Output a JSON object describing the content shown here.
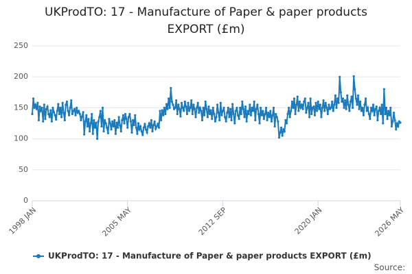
{
  "chart_data": {
    "type": "line",
    "title": "UKProdTO: 17 - Manufacture of Paper & paper products EXPORT (£m)",
    "source": "Source:",
    "ylim": [
      0,
      250
    ],
    "yticks": [
      0,
      50,
      100,
      150,
      200,
      250
    ],
    "grid": true,
    "categories": [
      "1998 JAN",
      null,
      null,
      null,
      null,
      null,
      null,
      null,
      null,
      null,
      null,
      null,
      null,
      null,
      null,
      null,
      null,
      null,
      null,
      null,
      null,
      null,
      null,
      null,
      null,
      null,
      null,
      null,
      null,
      null,
      null,
      null,
      null,
      null,
      null,
      null,
      null,
      null,
      null,
      null,
      null,
      null,
      null,
      null,
      null,
      null,
      null,
      null,
      null,
      null,
      null,
      null,
      null,
      null,
      null,
      null,
      null,
      null,
      null,
      null,
      null,
      null,
      null,
      null,
      null,
      null,
      null,
      null,
      null,
      null,
      null,
      null,
      null,
      null,
      null,
      null,
      null,
      null,
      null,
      null,
      null,
      null,
      null,
      null,
      null,
      null,
      null,
      null,
      "2005 MAY",
      null,
      null,
      null,
      null,
      null,
      null,
      null,
      null,
      null,
      null,
      null,
      null,
      null,
      null,
      null,
      null,
      null,
      null,
      null,
      null,
      null,
      null,
      null,
      null,
      null,
      null,
      null,
      null,
      null,
      null,
      null,
      null,
      null,
      null,
      null,
      null,
      null,
      null,
      null,
      null,
      null,
      null,
      null,
      null,
      null,
      null,
      null,
      null,
      null,
      null,
      null,
      null,
      null,
      null,
      null,
      null,
      null,
      null,
      null,
      null,
      null,
      null,
      null,
      null,
      null,
      null,
      null,
      null,
      null,
      null,
      null,
      null,
      null,
      null,
      null,
      null,
      null,
      null,
      null,
      null,
      null,
      null,
      null,
      null,
      null,
      null,
      null,
      "2012 SEP",
      null,
      null,
      null,
      null,
      null,
      null,
      null,
      null,
      null,
      null,
      null,
      null,
      null,
      null,
      null,
      null,
      null,
      null,
      null,
      null,
      null,
      null,
      null,
      null,
      null,
      null,
      null,
      null,
      null,
      null,
      null,
      null,
      null,
      null,
      null,
      null,
      null,
      null,
      null,
      null,
      null,
      null,
      null,
      null,
      null,
      null,
      null,
      null,
      null,
      null,
      null,
      null,
      null,
      null,
      null,
      null,
      null,
      null,
      null,
      null,
      null,
      null,
      null,
      null,
      null,
      null,
      null,
      null,
      null,
      null,
      null,
      null,
      null,
      null,
      null,
      null,
      null,
      null,
      null,
      null,
      null,
      null,
      null,
      null,
      null,
      null,
      null,
      "2020 JAN",
      null,
      null,
      null,
      null,
      null,
      null,
      null,
      null,
      null,
      null,
      null,
      null,
      null,
      null,
      null,
      null,
      null,
      null,
      null,
      null,
      null,
      null,
      null,
      null,
      null,
      null,
      null,
      null,
      null,
      null,
      null,
      null,
      null,
      null,
      null,
      null,
      null,
      null,
      null,
      null,
      null,
      null,
      null,
      null,
      null,
      null,
      null,
      null,
      null,
      null,
      null,
      null,
      null,
      null,
      null,
      null,
      null,
      null,
      null,
      null,
      null,
      null,
      null,
      null,
      null,
      null,
      null,
      null,
      null,
      null,
      null,
      null,
      null,
      null,
      null,
      "2026 MAY"
    ],
    "series": [
      {
        "name": "UKProdTO: 17 - Manufacture of Paper & paper products EXPORT (£m)",
        "color": "#1a7abc",
        "values": [
          140,
          165,
          150,
          155,
          148,
          158,
          130,
          152,
          145,
          150,
          128,
          155,
          132,
          148,
          152,
          140,
          135,
          146,
          128,
          150,
          143,
          138,
          131,
          145,
          156,
          140,
          150,
          135,
          158,
          142,
          130,
          155,
          160,
          145,
          138,
          150,
          162,
          140,
          145,
          148,
          138,
          150,
          142,
          145,
          140,
          130,
          136,
          143,
          107,
          128,
          138,
          120,
          132,
          112,
          125,
          140,
          108,
          130,
          118,
          126,
          100,
          128,
          135,
          145,
          120,
          150,
          112,
          130,
          125,
          118,
          109,
          132,
          125,
          115,
          128,
          120,
          130,
          108,
          126,
          118,
          135,
          122,
          112,
          130,
          138,
          125,
          140,
          132,
          118,
          135,
          140,
          128,
          110,
          130,
          122,
          138,
          118,
          108,
          125,
          115,
          120,
          112,
          106,
          118,
          124,
          115,
          110,
          120,
          125,
          118,
          130,
          112,
          122,
          128,
          116,
          120,
          124,
          118,
          145,
          130,
          146,
          138,
          150,
          140,
          156,
          148,
          165,
          150,
          182,
          160,
          155,
          148,
          150,
          162,
          140,
          155,
          148,
          136,
          158,
          150,
          145,
          160,
          152,
          140,
          158,
          145,
          150,
          162,
          140,
          155,
          148,
          135,
          150,
          158,
          142,
          150,
          145,
          130,
          150,
          138,
          160,
          148,
          135,
          152,
          140,
          146,
          132,
          150,
          140,
          128,
          135,
          155,
          142,
          130,
          158,
          138,
          145,
          150,
          135,
          128,
          142,
          150,
          135,
          148,
          130,
          156,
          140,
          125,
          145,
          150,
          138,
          132,
          150,
          140,
          160,
          148,
          135,
          152,
          128,
          145,
          140,
          155,
          138,
          150,
          145,
          160,
          130,
          148,
          155,
          140,
          125,
          150,
          138,
          145,
          132,
          140,
          150,
          130,
          142,
          135,
          145,
          128,
          138,
          150,
          120,
          140,
          135,
          128,
          102,
          110,
          118,
          105,
          115,
          112,
          130,
          125,
          140,
          150,
          135,
          145,
          160,
          150,
          165,
          140,
          155,
          168,
          145,
          160,
          150,
          155,
          148,
          160,
          165,
          142,
          150,
          158,
          135,
          165,
          140,
          150,
          152,
          138,
          158,
          145,
          160,
          148,
          155,
          135,
          150,
          162,
          145,
          158,
          150,
          140,
          155,
          148,
          150,
          160,
          145,
          155,
          170,
          150,
          165,
          158,
          200,
          175,
          160,
          165,
          150,
          162,
          148,
          170,
          155,
          145,
          160,
          168,
          150,
          201,
          180,
          165,
          155,
          170,
          148,
          160,
          145,
          150,
          138,
          155,
          165,
          145,
          150,
          140,
          132,
          150,
          145,
          155,
          138,
          148,
          152,
          130,
          145,
          150,
          140,
          155,
          125,
          180,
          140,
          150,
          132,
          145,
          138,
          150,
          120,
          128,
          142,
          130,
          115,
          125,
          120,
          128,
          126
        ]
      }
    ]
  }
}
